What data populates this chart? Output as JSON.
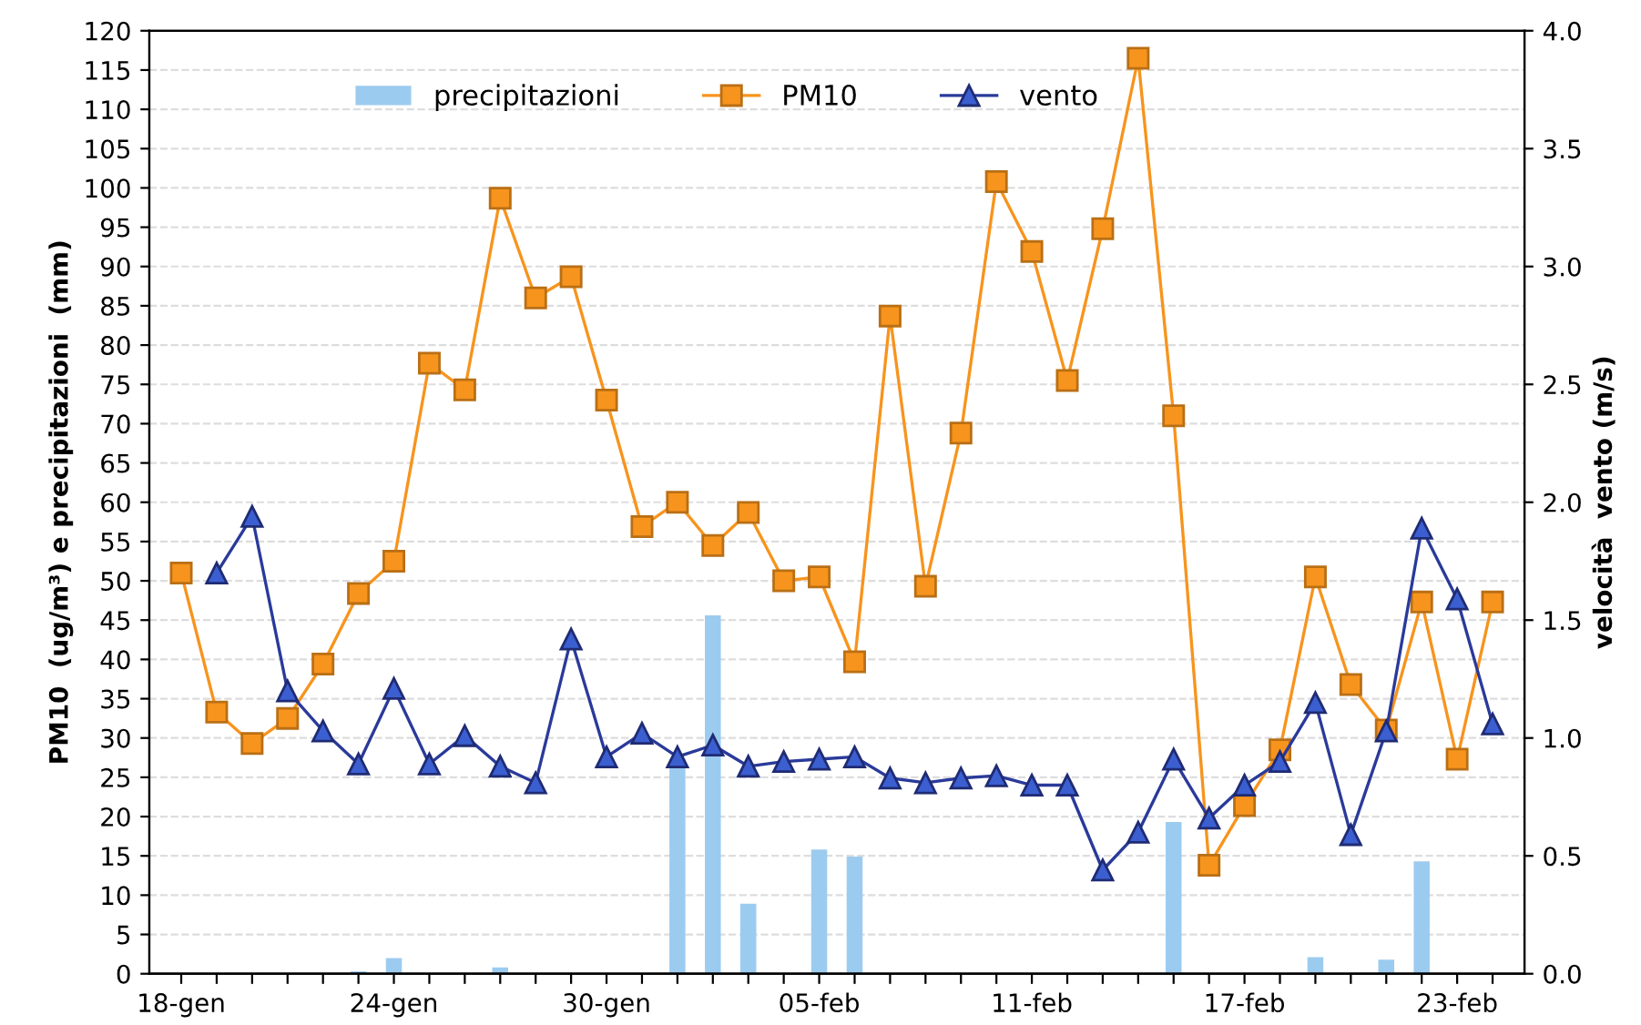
{
  "chart_data": {
    "type": "line",
    "ylabel": "PM10  (ug/m³) e precipitazioni  (mm)",
    "y2label": "velocità  vento (m/s)",
    "categories": [
      "18-gen",
      null,
      null,
      null,
      null,
      null,
      "24-gen",
      null,
      null,
      null,
      null,
      null,
      "30-gen",
      null,
      null,
      null,
      null,
      null,
      "05-feb",
      null,
      null,
      null,
      null,
      null,
      "11-feb",
      null,
      null,
      null,
      null,
      null,
      "17-feb",
      null,
      null,
      null,
      null,
      null,
      "23-feb",
      null
    ],
    "series": [
      {
        "name": "precipitazioni",
        "type": "bar",
        "color": "#9ccbf0",
        "values": [
          0,
          0,
          0,
          0,
          0,
          0.3,
          2.0,
          0,
          0,
          0.8,
          0,
          0,
          null,
          0,
          27.3,
          45.6,
          8.9,
          null,
          15.8,
          14.9,
          0,
          0,
          0,
          0,
          0,
          0,
          0,
          0,
          19.3,
          0,
          0,
          0,
          2.1,
          0,
          1.8,
          14.3,
          0,
          0
        ]
      },
      {
        "name": "PM10",
        "color": "#f7941d",
        "marker": "square",
        "values": [
          51.0,
          33.3,
          29.3,
          32.5,
          39.4,
          48.4,
          52.5,
          77.7,
          74.3,
          98.7,
          86.0,
          88.7,
          73.0,
          56.9,
          60.0,
          54.5,
          58.7,
          50.0,
          50.5,
          39.7,
          83.7,
          49.3,
          68.8,
          100.8,
          91.9,
          75.5,
          94.8,
          116.5,
          71.0,
          13.8,
          21.4,
          28.5,
          50.5,
          36.8,
          31.0,
          47.3,
          27.3,
          47.3
        ]
      },
      {
        "name": "vento",
        "axis": "y2",
        "color": "#2a3a9a",
        "marker": "triangle",
        "values": [
          null,
          1.7,
          1.94,
          1.2,
          1.03,
          0.89,
          1.21,
          0.89,
          1.01,
          0.88,
          0.81,
          1.42,
          0.92,
          1.02,
          0.92,
          0.97,
          0.88,
          0.9,
          0.91,
          0.92,
          0.83,
          0.81,
          0.83,
          0.84,
          0.8,
          0.8,
          0.44,
          0.6,
          0.91,
          0.66,
          0.8,
          0.9,
          1.15,
          0.59,
          1.03,
          1.89,
          1.59,
          1.06
        ]
      }
    ],
    "ylim": [
      0,
      120
    ],
    "yticks": [
      0,
      5,
      10,
      15,
      20,
      25,
      30,
      35,
      40,
      45,
      50,
      55,
      60,
      65,
      70,
      75,
      80,
      85,
      90,
      95,
      100,
      105,
      110,
      115,
      120
    ],
    "y2lim": [
      0,
      4
    ],
    "y2ticks": [
      {
        "value": 0,
        "label": "0.0"
      },
      0.5,
      {
        "value": 1,
        "label": "1.0"
      },
      1.5,
      {
        "value": 2,
        "label": "2.0"
      },
      2.5,
      {
        "value": 3,
        "label": "3.0"
      },
      3.5,
      {
        "value": 4,
        "label": "4.0"
      }
    ],
    "grid": "y",
    "legend": "top",
    "line_style": "solid"
  }
}
